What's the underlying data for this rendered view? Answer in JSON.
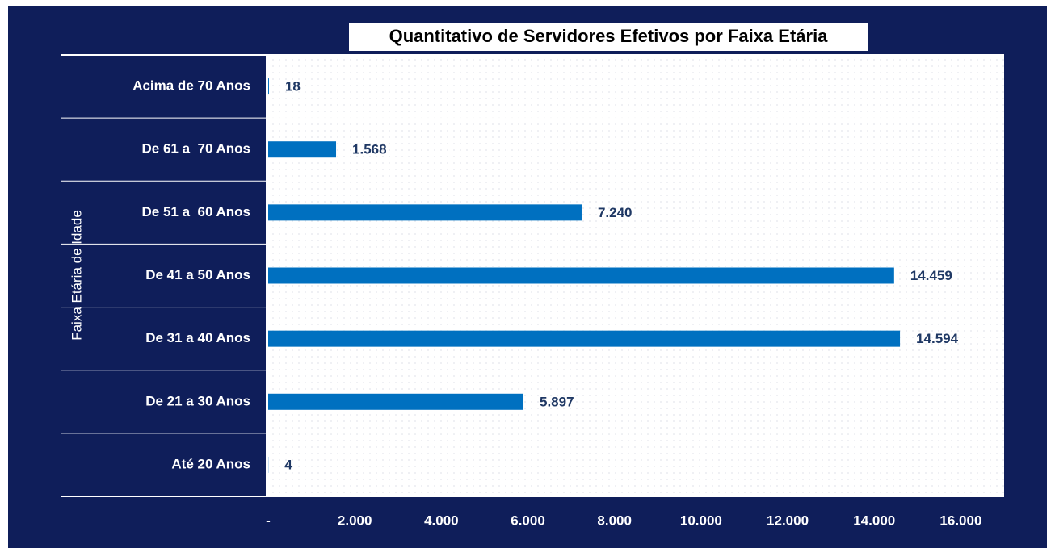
{
  "chart_data": {
    "type": "bar",
    "orientation": "horizontal",
    "title": "Quantitativo de Servidores Efetivos por Faixa Etária",
    "y_label": "Faixa Etária de Idade",
    "categories": [
      "Acima de 70 Anos",
      "De 61 a  70 Anos",
      "De 51 a  60 Anos",
      "De 41 a 50 Anos",
      "De 31 a 40 Anos",
      "De 21 a 30 Anos",
      "Até 20 Anos"
    ],
    "values": [
      18,
      1568,
      7240,
      14459,
      14594,
      5897,
      4
    ],
    "value_labels": [
      "18",
      "1.568",
      "7.240",
      "14.459",
      "14.594",
      "5.897",
      "4"
    ],
    "color": "#0070c0",
    "xlim": [
      0,
      17000
    ],
    "xticks": [
      {
        "value": 0,
        "label": "-"
      },
      {
        "value": 2000,
        "label": "2.000"
      },
      {
        "value": 4000,
        "label": "4.000"
      },
      {
        "value": 6000,
        "label": "6.000"
      },
      {
        "value": 8000,
        "label": "8.000"
      },
      {
        "value": 10000,
        "label": "10.000"
      },
      {
        "value": 12000,
        "label": "12.000"
      },
      {
        "value": 14000,
        "label": "14.000"
      },
      {
        "value": 16000,
        "label": "16.000"
      }
    ]
  }
}
